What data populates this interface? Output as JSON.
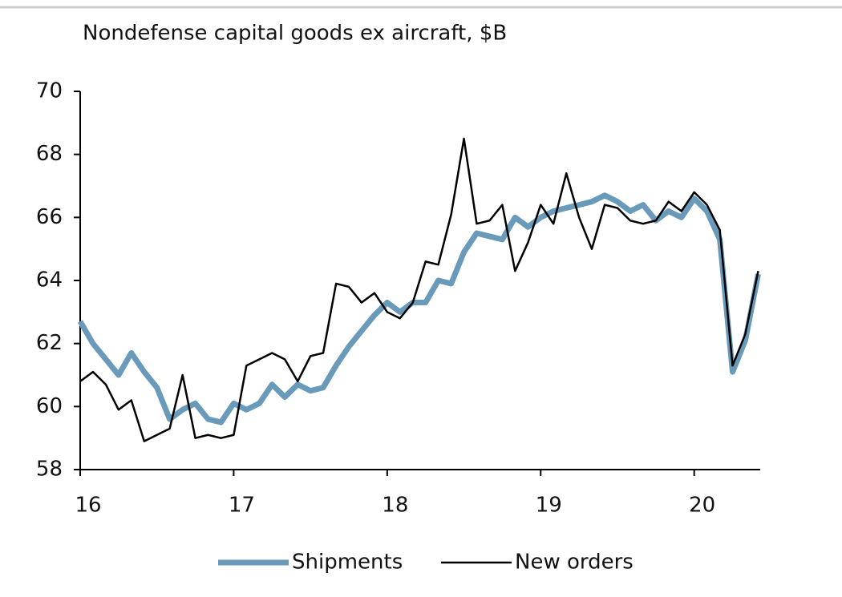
{
  "chart_data": {
    "type": "line",
    "title": "Nondefense capital goods ex aircraft, $B",
    "x": [
      16,
      16.083,
      16.167,
      16.25,
      16.333,
      16.417,
      16.5,
      16.583,
      16.667,
      16.75,
      16.833,
      16.917,
      17,
      17.083,
      17.167,
      17.25,
      17.333,
      17.417,
      17.5,
      17.583,
      17.667,
      17.75,
      17.833,
      17.917,
      18,
      18.083,
      18.167,
      18.25,
      18.333,
      18.417,
      18.5,
      18.583,
      18.667,
      18.75,
      18.833,
      18.917,
      19,
      19.083,
      19.167,
      19.25,
      19.333,
      19.417,
      19.5,
      19.583,
      19.667,
      19.75,
      19.833,
      19.917,
      20,
      20.083,
      20.167,
      20.25,
      20.333,
      20.417
    ],
    "series": [
      {
        "name": "Shipments",
        "color": "#6a9aba",
        "values": [
          62.7,
          62.0,
          61.5,
          61.0,
          61.7,
          61.1,
          60.6,
          59.6,
          59.9,
          60.1,
          59.6,
          59.5,
          60.1,
          59.9,
          60.1,
          60.7,
          60.3,
          60.7,
          60.5,
          60.6,
          61.3,
          61.9,
          62.4,
          62.9,
          63.3,
          63.0,
          63.3,
          63.3,
          64.0,
          63.9,
          64.9,
          65.5,
          65.4,
          65.3,
          66.0,
          65.7,
          66.0,
          66.2,
          66.3,
          66.4,
          66.5,
          66.7,
          66.5,
          66.2,
          66.4,
          65.9,
          66.2,
          66.0,
          66.6,
          66.2,
          65.3,
          61.1,
          62.1,
          64.2
        ]
      },
      {
        "name": "New orders",
        "color": "#000000",
        "values": [
          60.8,
          61.1,
          60.7,
          59.9,
          60.2,
          58.9,
          59.1,
          59.3,
          61.0,
          59.0,
          59.1,
          59.0,
          59.1,
          61.3,
          61.5,
          61.7,
          61.5,
          60.8,
          61.6,
          61.7,
          63.9,
          63.8,
          63.3,
          63.6,
          63.0,
          62.8,
          63.3,
          64.6,
          64.5,
          66.1,
          68.5,
          65.8,
          65.9,
          66.4,
          64.3,
          65.2,
          66.4,
          65.8,
          67.4,
          66.0,
          65.0,
          66.4,
          66.3,
          65.9,
          65.8,
          65.9,
          66.5,
          66.2,
          66.8,
          66.4,
          65.6,
          61.3,
          62.3,
          64.3
        ]
      }
    ],
    "xlim": [
      16,
      20.43
    ],
    "xticks": [
      16,
      17,
      18,
      19,
      20
    ],
    "ylim": [
      58,
      70
    ],
    "yticks": [
      58,
      60,
      62,
      64,
      66,
      68,
      70
    ],
    "legend": "bottom"
  }
}
